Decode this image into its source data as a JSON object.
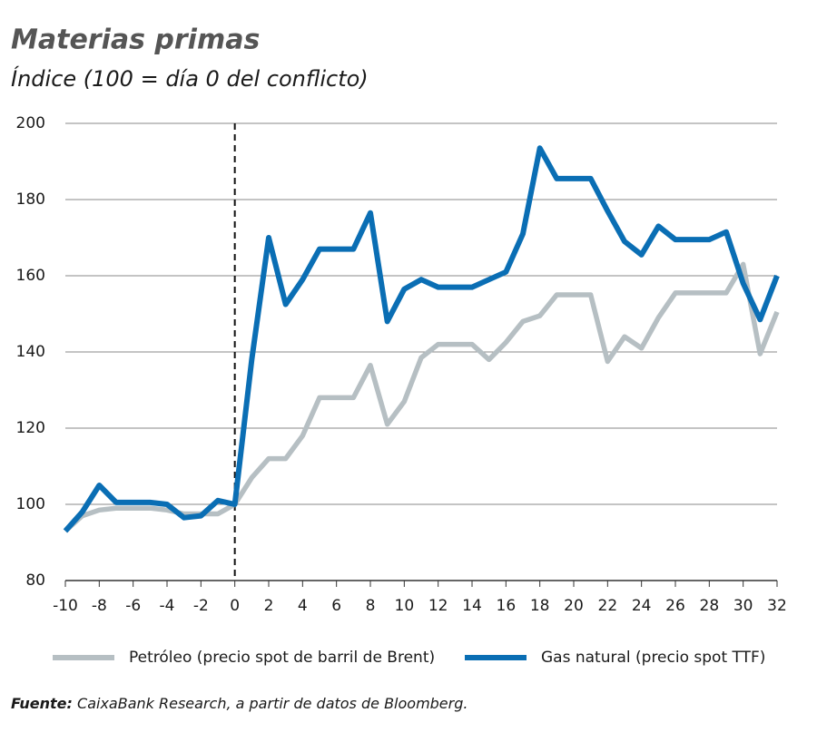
{
  "chart_data": {
    "type": "line",
    "title": "Materias primas",
    "subtitle": "Índice (100 = día 0 del conflicto)",
    "x": [
      -10,
      -9,
      -8,
      -7,
      -6,
      -5,
      -4,
      -3,
      -2,
      -1,
      0,
      1,
      2,
      3,
      4,
      5,
      6,
      7,
      8,
      9,
      10,
      11,
      12,
      13,
      14,
      15,
      16,
      17,
      18,
      19,
      20,
      21,
      22,
      23,
      24,
      25,
      26,
      27,
      28,
      29,
      30,
      31,
      32
    ],
    "series": [
      {
        "name": "Petróleo (precio spot de barril de Brent)",
        "color": "#b6bfc3",
        "values": [
          93,
          97,
          98.5,
          99,
          99,
          99,
          98.5,
          97.5,
          97.5,
          97.5,
          100,
          107,
          112,
          112,
          118,
          128,
          128,
          128,
          136.5,
          121,
          127,
          138.5,
          142,
          142,
          142,
          138,
          142.5,
          148,
          149.5,
          155,
          155,
          155,
          137.5,
          144,
          141,
          149,
          155.5,
          155.5,
          155.5,
          155.5,
          163,
          139.5,
          150.5
        ]
      },
      {
        "name": "Gas natural (precio spot TTF)",
        "color": "#0a6eb4",
        "values": [
          93,
          98,
          105,
          100.5,
          100.5,
          100.5,
          100,
          96.5,
          97,
          101,
          100,
          138,
          170,
          152.5,
          159,
          167,
          167,
          167,
          176.5,
          148,
          156.5,
          159,
          157,
          157,
          157,
          159,
          161,
          171,
          193.5,
          185.5,
          185.5,
          185.5,
          177,
          169,
          165.5,
          173,
          169.5,
          169.5,
          169.5,
          171.5,
          158,
          148.5,
          160
        ]
      }
    ],
    "xlim": [
      -10,
      32
    ],
    "xticks": [
      -10,
      -8,
      -6,
      -4,
      -2,
      0,
      2,
      4,
      6,
      8,
      10,
      12,
      14,
      16,
      18,
      20,
      22,
      24,
      26,
      28,
      30,
      32
    ],
    "ylim": [
      80,
      200
    ],
    "yticks": [
      80,
      100,
      120,
      140,
      160,
      180,
      200
    ],
    "grid": true,
    "vline": 0,
    "source": {
      "label": "Fuente:",
      "text": "CaixaBank Research, a partir de datos de Bloomberg."
    }
  }
}
